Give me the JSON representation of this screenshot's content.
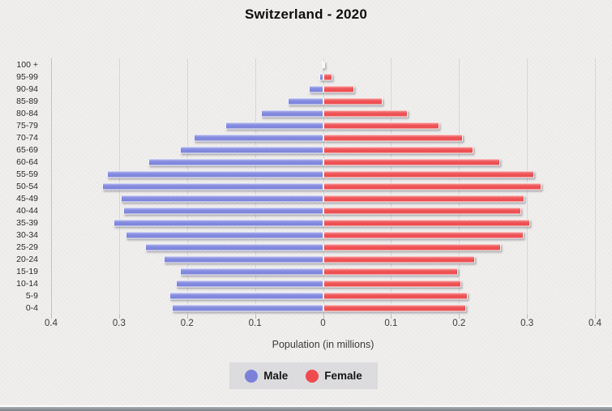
{
  "title": "Switzerland - 2020",
  "xaxis_title": "Population (in millions)",
  "legend": {
    "male_label": "Male",
    "female_label": "Female"
  },
  "colors": {
    "male": "#7f86dd",
    "female": "#ee5254",
    "legend_male_dot": "#7b80d8",
    "legend_female_dot": "#ef4b4e",
    "background": "#f0efed",
    "axis_line": "#b9c3d4"
  },
  "chart_data": {
    "type": "bar",
    "subtype": "population-pyramid",
    "title": "Switzerland - 2020",
    "xlabel": "Population (in millions)",
    "ylabel": "",
    "categories": [
      "100 +",
      "95-99",
      "90-94",
      "85-89",
      "80-84",
      "75-79",
      "70-74",
      "65-69",
      "60-64",
      "55-59",
      "50-54",
      "45-49",
      "40-44",
      "35-39",
      "30-34",
      "25-29",
      "20-24",
      "15-19",
      "10-14",
      "5-9",
      "0-4"
    ],
    "series": [
      {
        "name": "Male",
        "side": "left",
        "color": "#7f86dd",
        "values": [
          0.001,
          0.005,
          0.021,
          0.052,
          0.091,
          0.144,
          0.19,
          0.21,
          0.257,
          0.318,
          0.325,
          0.297,
          0.294,
          0.308,
          0.29,
          0.262,
          0.234,
          0.211,
          0.216,
          0.226,
          0.222
        ]
      },
      {
        "name": "Female",
        "side": "right",
        "color": "#ee5254",
        "values": [
          0.003,
          0.014,
          0.046,
          0.088,
          0.124,
          0.171,
          0.206,
          0.221,
          0.26,
          0.31,
          0.321,
          0.296,
          0.291,
          0.305,
          0.295,
          0.262,
          0.224,
          0.198,
          0.203,
          0.213,
          0.21
        ]
      }
    ],
    "x_tick_labels": [
      "0.4",
      "0.3",
      "0.2",
      "0.1",
      "0",
      "0.1",
      "0.2",
      "0.3",
      "0.4"
    ],
    "xlim_per_side": [
      0,
      0.4
    ],
    "grid": true,
    "legend_position": "bottom-center"
  }
}
